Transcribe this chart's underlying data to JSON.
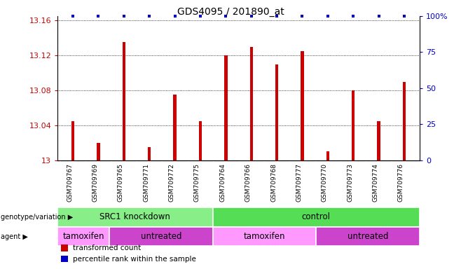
{
  "title": "GDS4095 / 201890_at",
  "samples": [
    "GSM709767",
    "GSM709769",
    "GSM709765",
    "GSM709771",
    "GSM709772",
    "GSM709775",
    "GSM709764",
    "GSM709766",
    "GSM709768",
    "GSM709777",
    "GSM709770",
    "GSM709773",
    "GSM709774",
    "GSM709776"
  ],
  "bar_values": [
    13.045,
    13.02,
    13.135,
    13.015,
    13.075,
    13.045,
    13.12,
    13.13,
    13.11,
    13.125,
    13.01,
    13.08,
    13.045,
    13.09
  ],
  "percentile_values": [
    100,
    100,
    100,
    100,
    100,
    100,
    100,
    100,
    100,
    100,
    100,
    100,
    100,
    100
  ],
  "bar_color": "#cc0000",
  "percentile_color": "#0000cc",
  "ylim_left": [
    13.0,
    13.165
  ],
  "ylim_right": [
    0,
    100
  ],
  "yticks_left": [
    13.0,
    13.04,
    13.08,
    13.12,
    13.16
  ],
  "yticks_right": [
    0,
    25,
    50,
    75,
    100
  ],
  "ytick_labels_left": [
    "13",
    "13.04",
    "13.08",
    "13.12",
    "13.16"
  ],
  "ytick_labels_right": [
    "0",
    "25",
    "50",
    "75",
    "100%"
  ],
  "genotype_groups": [
    {
      "label": "SRC1 knockdown",
      "start": 0,
      "end": 6,
      "color": "#88ee88"
    },
    {
      "label": "control",
      "start": 6,
      "end": 14,
      "color": "#55dd55"
    }
  ],
  "agent_groups": [
    {
      "label": "tamoxifen",
      "start": 0,
      "end": 2,
      "color": "#ff99ff"
    },
    {
      "label": "untreated",
      "start": 2,
      "end": 6,
      "color": "#cc44cc"
    },
    {
      "label": "tamoxifen",
      "start": 6,
      "end": 10,
      "color": "#ff99ff"
    },
    {
      "label": "untreated",
      "start": 10,
      "end": 14,
      "color": "#cc44cc"
    }
  ],
  "legend_items": [
    {
      "color": "#cc0000",
      "label": "transformed count"
    },
    {
      "color": "#0000cc",
      "label": "percentile rank within the sample"
    }
  ],
  "bar_color_red": "#cc0000",
  "ylabel_left_color": "#cc0000",
  "ylabel_right_color": "#0000cc",
  "bg_color": "#ffffff",
  "label_bg_color": "#cccccc",
  "bar_width": 0.12
}
